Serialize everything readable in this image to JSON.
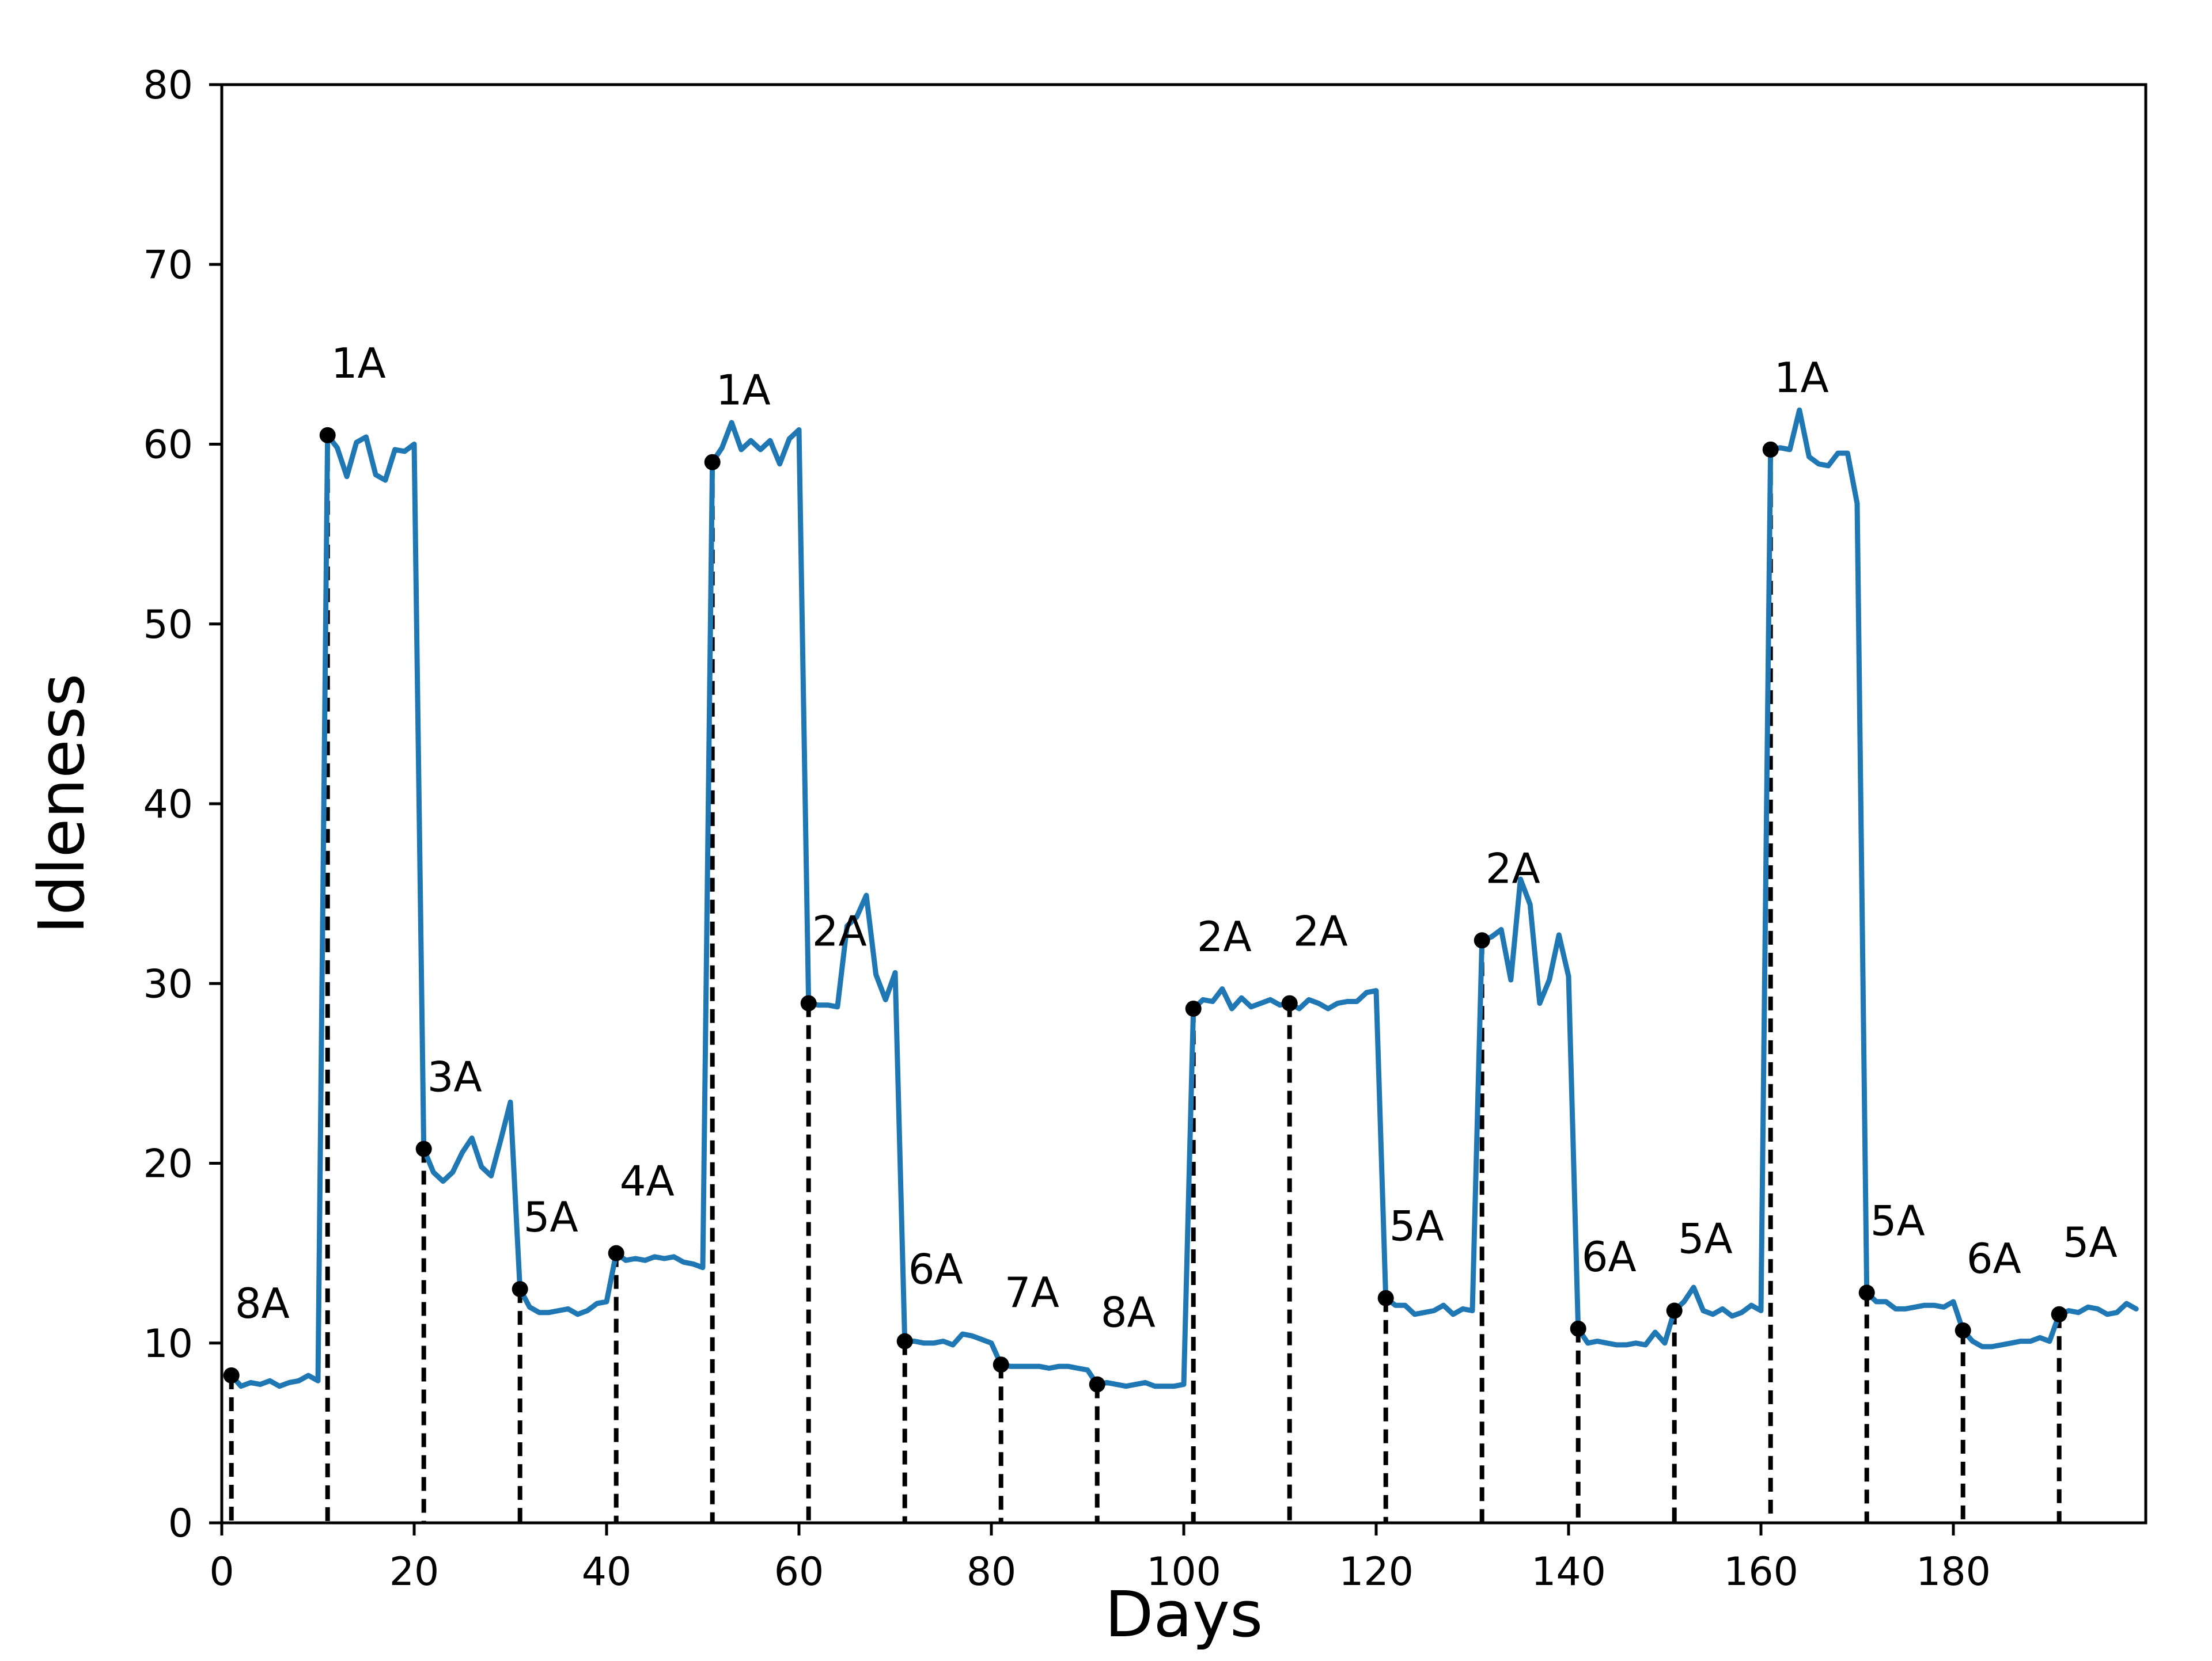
{
  "chart_data": {
    "type": "line",
    "title": "",
    "xlabel": "Days",
    "ylabel": "Idleness",
    "xlim": [
      0,
      200
    ],
    "ylim": [
      0,
      80
    ],
    "xticks": [
      0,
      20,
      40,
      60,
      80,
      100,
      120,
      140,
      160,
      180
    ],
    "yticks": [
      0,
      10,
      20,
      30,
      40,
      50,
      60,
      70,
      80
    ],
    "grid": false,
    "colors": {
      "line": "#1f77b4",
      "markers": "#000000",
      "dropline": "#000000"
    },
    "series": [
      {
        "name": "Idleness",
        "x": [
          1,
          2,
          3,
          4,
          5,
          6,
          7,
          8,
          9,
          10,
          11,
          12,
          13,
          14,
          15,
          16,
          17,
          18,
          19,
          20,
          21,
          22,
          23,
          24,
          25,
          26,
          27,
          28,
          29,
          30,
          31,
          32,
          33,
          34,
          35,
          36,
          37,
          38,
          39,
          40,
          41,
          42,
          43,
          44,
          45,
          46,
          47,
          48,
          49,
          50,
          51,
          52,
          53,
          54,
          55,
          56,
          57,
          58,
          59,
          60,
          61,
          62,
          63,
          64,
          65,
          66,
          67,
          68,
          69,
          70,
          71,
          72,
          73,
          74,
          75,
          76,
          77,
          78,
          79,
          80,
          81,
          82,
          83,
          84,
          85,
          86,
          87,
          88,
          89,
          90,
          91,
          92,
          93,
          94,
          95,
          96,
          97,
          98,
          99,
          100,
          101,
          102,
          103,
          104,
          105,
          106,
          107,
          108,
          109,
          110,
          111,
          112,
          113,
          114,
          115,
          116,
          117,
          118,
          119,
          120,
          121,
          122,
          123,
          124,
          125,
          126,
          127,
          128,
          129,
          130,
          131,
          132,
          133,
          134,
          135,
          136,
          137,
          138,
          139,
          140,
          141,
          142,
          143,
          144,
          145,
          146,
          147,
          148,
          149,
          150,
          151,
          152,
          153,
          154,
          155,
          156,
          157,
          158,
          159,
          160,
          161,
          162,
          163,
          164,
          165,
          166,
          167,
          168,
          169,
          170,
          171,
          172,
          173,
          174,
          175,
          176,
          177,
          178,
          179,
          180,
          181,
          182,
          183,
          184,
          185,
          186,
          187,
          188,
          189,
          190,
          191,
          192,
          193,
          194,
          195,
          196,
          197,
          198,
          199
        ],
        "y": [
          8.2,
          7.6,
          7.8,
          7.7,
          7.9,
          7.6,
          7.8,
          7.9,
          8.2,
          7.9,
          60.5,
          59.8,
          58.2,
          60.1,
          60.4,
          58.3,
          58.0,
          59.7,
          59.6,
          60.0,
          20.8,
          19.5,
          19.0,
          19.5,
          20.6,
          21.4,
          19.8,
          19.3,
          21.3,
          23.4,
          13.0,
          12.0,
          11.7,
          11.7,
          11.8,
          11.9,
          11.6,
          11.8,
          12.2,
          12.3,
          15.0,
          14.6,
          14.7,
          14.6,
          14.8,
          14.7,
          14.8,
          14.5,
          14.4,
          14.2,
          59.0,
          59.8,
          61.2,
          59.7,
          60.2,
          59.7,
          60.2,
          58.9,
          60.3,
          60.8,
          28.9,
          28.8,
          28.8,
          28.7,
          33.2,
          33.7,
          34.9,
          30.5,
          29.1,
          30.6,
          10.1,
          10.1,
          10.0,
          10.0,
          10.1,
          9.9,
          10.5,
          10.4,
          10.2,
          10.0,
          8.8,
          8.7,
          8.7,
          8.7,
          8.7,
          8.6,
          8.7,
          8.7,
          8.6,
          8.5,
          7.7,
          7.8,
          7.7,
          7.6,
          7.7,
          7.8,
          7.6,
          7.6,
          7.6,
          7.7,
          28.6,
          29.1,
          29.0,
          29.7,
          28.6,
          29.2,
          28.7,
          28.9,
          29.1,
          28.8,
          28.9,
          28.6,
          29.1,
          28.9,
          28.6,
          28.9,
          29.0,
          29.0,
          29.5,
          29.6,
          12.5,
          12.1,
          12.1,
          11.6,
          11.7,
          11.8,
          12.1,
          11.6,
          11.9,
          11.8,
          32.4,
          32.6,
          33.0,
          30.2,
          35.8,
          34.4,
          28.9,
          30.2,
          32.7,
          30.4,
          10.8,
          10.0,
          10.1,
          10.0,
          9.9,
          9.9,
          10.0,
          9.9,
          10.6,
          10.0,
          11.8,
          12.3,
          13.1,
          11.8,
          11.6,
          11.9,
          11.5,
          11.7,
          12.1,
          11.8,
          59.7,
          59.8,
          59.7,
          61.9,
          59.3,
          58.9,
          58.8,
          59.5,
          59.5,
          56.7,
          12.8,
          12.3,
          12.3,
          11.9,
          11.9,
          12.0,
          12.1,
          12.1,
          12.0,
          12.3,
          10.7,
          10.1,
          9.8,
          9.8,
          9.9,
          10.0,
          10.1,
          10.1,
          10.3,
          10.1,
          11.6,
          11.8,
          11.7,
          12.0,
          11.9,
          11.6,
          11.7,
          12.2,
          11.9
        ]
      }
    ],
    "annotations": [
      {
        "x": 1,
        "y": 8.2,
        "label": "8A"
      },
      {
        "x": 11,
        "y": 60.5,
        "label": "1A"
      },
      {
        "x": 21,
        "y": 20.8,
        "label": "3A"
      },
      {
        "x": 31,
        "y": 13.0,
        "label": "5A"
      },
      {
        "x": 41,
        "y": 15.0,
        "label": "4A"
      },
      {
        "x": 51,
        "y": 59.0,
        "label": "1A"
      },
      {
        "x": 61,
        "y": 28.9,
        "label": "2A"
      },
      {
        "x": 71,
        "y": 10.1,
        "label": "6A"
      },
      {
        "x": 81,
        "y": 8.8,
        "label": "7A"
      },
      {
        "x": 91,
        "y": 7.7,
        "label": "8A"
      },
      {
        "x": 101,
        "y": 28.6,
        "label": "2A"
      },
      {
        "x": 111,
        "y": 28.9,
        "label": "2A"
      },
      {
        "x": 121,
        "y": 12.5,
        "label": "5A"
      },
      {
        "x": 131,
        "y": 32.4,
        "label": "2A"
      },
      {
        "x": 141,
        "y": 10.8,
        "label": "6A"
      },
      {
        "x": 151,
        "y": 11.8,
        "label": "5A"
      },
      {
        "x": 161,
        "y": 59.7,
        "label": "1A"
      },
      {
        "x": 171,
        "y": 12.8,
        "label": "5A"
      },
      {
        "x": 181,
        "y": 10.7,
        "label": "6A"
      },
      {
        "x": 191,
        "y": 11.6,
        "label": "5A"
      }
    ]
  }
}
